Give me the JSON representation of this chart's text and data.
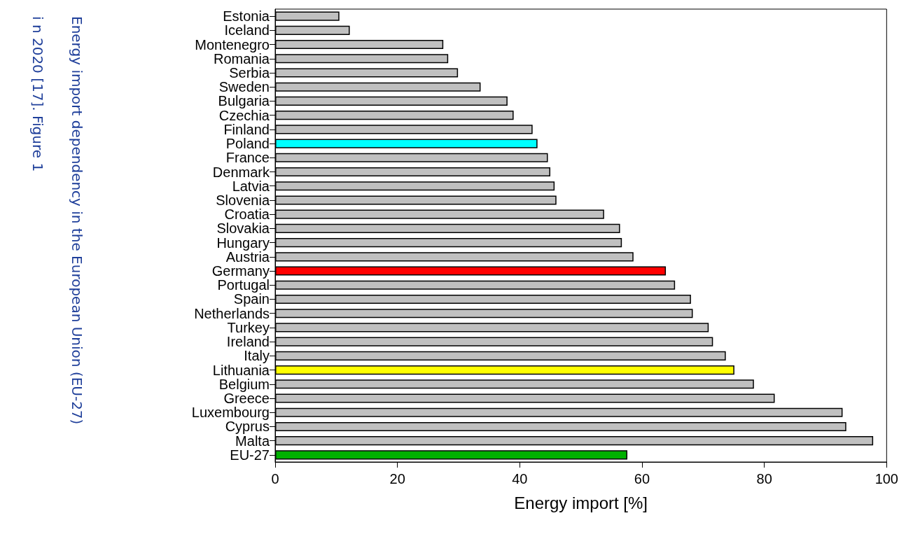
{
  "chart_data": {
    "type": "bar",
    "orientation": "horizontal",
    "xlabel": "Energy import [%]",
    "annotations": [
      "Energy import dependency in the European Union (EU-27)",
      "i n 2020 [17]. Figure 1"
    ],
    "categories": [
      "Estonia",
      "Iceland",
      "Montenegro",
      "Romania",
      "Serbia",
      "Sweden",
      "Bulgaria",
      "Czechia",
      "Finland",
      "Poland",
      "France",
      "Denmark",
      "Latvia",
      "Slovenia",
      "Croatia",
      "Slovakia",
      "Hungary",
      "Austria",
      "Germany",
      "Portugal",
      "Spain",
      "Netherlands",
      "Turkey",
      "Ireland",
      "Italy",
      "Lithuania",
      "Belgium",
      "Greece",
      "Luxembourg",
      "Cyprus",
      "Malta",
      "EU-27"
    ],
    "values": [
      10.5,
      12.2,
      27.5,
      28.3,
      29.9,
      33.6,
      38.0,
      39.0,
      42.1,
      42.9,
      44.6,
      45.0,
      45.7,
      46.0,
      53.8,
      56.4,
      56.7,
      58.6,
      63.9,
      65.4,
      68.0,
      68.3,
      70.9,
      71.6,
      73.7,
      75.1,
      78.3,
      81.7,
      92.8,
      93.4,
      97.8,
      57.6
    ],
    "colors": [
      "#c0c0c0",
      "#c0c0c0",
      "#c0c0c0",
      "#c0c0c0",
      "#c0c0c0",
      "#c0c0c0",
      "#c0c0c0",
      "#c0c0c0",
      "#c0c0c0",
      "#00ffff",
      "#c0c0c0",
      "#c0c0c0",
      "#c0c0c0",
      "#c0c0c0",
      "#c0c0c0",
      "#c0c0c0",
      "#c0c0c0",
      "#c0c0c0",
      "#ff0000",
      "#c0c0c0",
      "#c0c0c0",
      "#c0c0c0",
      "#c0c0c0",
      "#c0c0c0",
      "#c0c0c0",
      "#ffff00",
      "#c0c0c0",
      "#c0c0c0",
      "#c0c0c0",
      "#c0c0c0",
      "#c0c0c0",
      "#00b000"
    ],
    "xlim": [
      0,
      100
    ],
    "xticks": [
      0,
      20,
      40,
      60,
      80,
      100
    ],
    "grid": false
  }
}
